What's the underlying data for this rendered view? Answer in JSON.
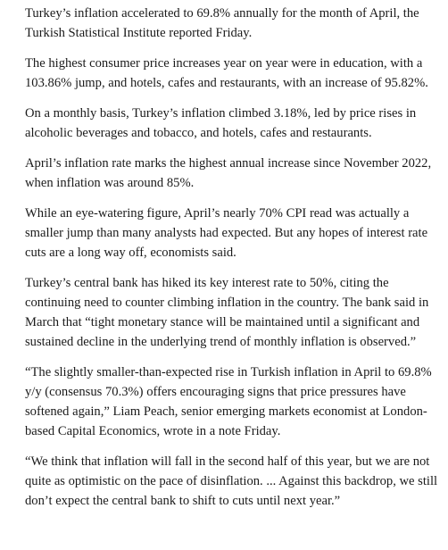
{
  "article": {
    "paragraphs": [
      "Turkey’s inflation accelerated to 69.8% annually for the month of April, the Turkish Statistical Institute reported Friday.",
      "The highest consumer price increases year on year were in education, with a 103.86% jump, and hotels, cafes and restaurants, with an increase of 95.82%.",
      "On a monthly basis, Turkey’s inflation climbed 3.18%, led by price rises in alcoholic beverages and tobacco, and hotels, cafes and restaurants.",
      "April’s inflation rate marks the highest annual increase since November 2022, when inflation was around 85%.",
      "While an eye-watering figure, April’s nearly 70% CPI read was actually a smaller jump than many analysts had expected. But any hopes of interest rate cuts are a long way off, economists said.",
      "Turkey’s central bank has hiked its key interest rate to 50%, citing the continuing need to counter climbing inflation in the country. The bank said in March that “tight monetary stance will be maintained until a significant and sustained decline in the underlying trend of monthly inflation is observed.”",
      "“The slightly smaller-than-expected rise in Turkish inflation in April to 69.8% y/y (consensus 70.3%) offers encouraging signs that price pressures have softened again,” Liam Peach, senior emerging markets economist at London-based Capital Economics, wrote in a note Friday.",
      "“We think that inflation will fall in the second half of this year, but we are not quite as optimistic on the pace of disinflation. ... Against this backdrop, we still don’t expect the central bank to shift to cuts until next year.”"
    ]
  }
}
